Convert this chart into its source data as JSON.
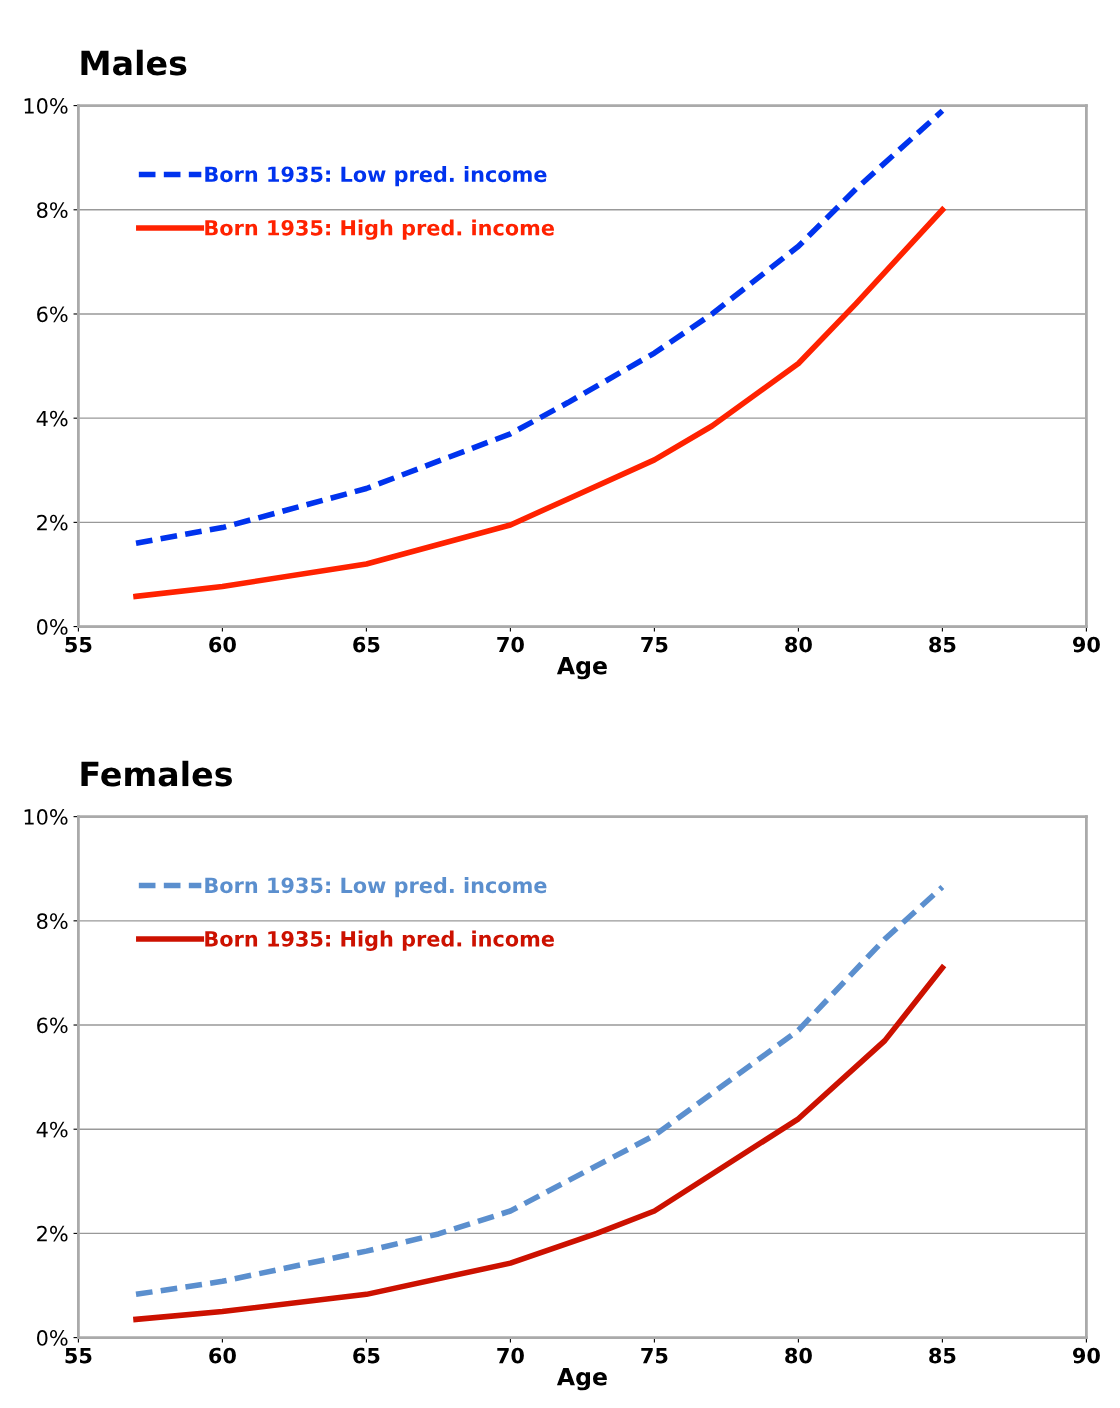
{
  "chart_data": [
    {
      "type": "line",
      "title": "Males",
      "xlabel": "Age",
      "xlim": [
        55,
        90
      ],
      "xticks": [
        55,
        60,
        65,
        70,
        75,
        80,
        85,
        90
      ],
      "ylim": [
        0,
        10
      ],
      "yticks": [
        {
          "value": 0,
          "label": "0%"
        },
        {
          "value": 2,
          "label": "2%"
        },
        {
          "value": 4,
          "label": "4%"
        },
        {
          "value": 6,
          "label": "6%"
        },
        {
          "value": 8,
          "label": "8%"
        },
        {
          "value": 10,
          "label": "10%"
        }
      ],
      "grid": "y",
      "legend": "top left",
      "marker": "none",
      "series": [
        {
          "name": "Born 1935: Low pred. income",
          "color": "#0033ee",
          "line_style": "dashed",
          "x": [
            57,
            60,
            65,
            70,
            72,
            75,
            77,
            80,
            82,
            85
          ],
          "values": [
            1.6,
            1.9,
            2.65,
            3.7,
            4.3,
            5.25,
            6.0,
            7.3,
            8.4,
            9.9
          ]
        },
        {
          "name": "Born 1935: High pred. income",
          "color": "#ff2200",
          "line_style": "solid",
          "x": [
            57,
            60,
            65,
            70,
            72,
            75,
            77,
            80,
            82,
            85
          ],
          "values": [
            0.58,
            0.77,
            1.2,
            1.95,
            2.45,
            3.2,
            3.85,
            5.05,
            6.2,
            8.0
          ]
        }
      ]
    },
    {
      "type": "line",
      "title": "Females",
      "xlabel": "Age",
      "xlim": [
        55,
        90
      ],
      "xticks": [
        55,
        60,
        65,
        70,
        75,
        80,
        85,
        90
      ],
      "ylim": [
        0,
        10
      ],
      "yticks": [
        {
          "value": 0,
          "label": "0%"
        },
        {
          "value": 2,
          "label": "2%"
        },
        {
          "value": 4,
          "label": "4%"
        },
        {
          "value": 6,
          "label": "6%"
        },
        {
          "value": 8,
          "label": "8%"
        },
        {
          "value": 10,
          "label": "10%"
        }
      ],
      "grid": "y",
      "legend": "top left",
      "marker": "none",
      "series": [
        {
          "name": "Born 1935: Low pred. income",
          "color": "#5b8fce",
          "line_style": "dashed",
          "x": [
            57,
            60,
            65,
            67.5,
            70,
            75,
            80,
            83,
            85
          ],
          "values": [
            0.83,
            1.08,
            1.66,
            1.99,
            2.43,
            3.88,
            5.9,
            7.65,
            8.65
          ]
        },
        {
          "name": "Born 1935: High pred. income",
          "color": "#cc1100",
          "line_style": "solid",
          "x": [
            57,
            60,
            65,
            70,
            73,
            75,
            80,
            83,
            85
          ],
          "values": [
            0.35,
            0.5,
            0.83,
            1.43,
            2.0,
            2.43,
            4.2,
            5.7,
            7.1
          ]
        }
      ]
    }
  ]
}
